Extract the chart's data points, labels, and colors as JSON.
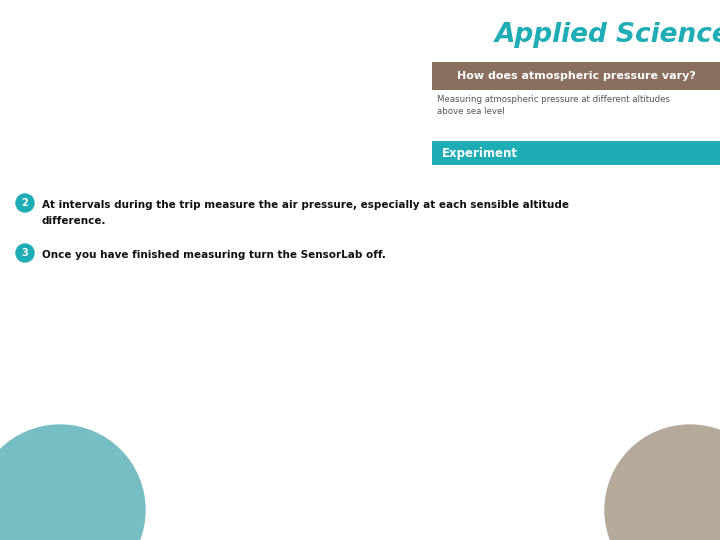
{
  "bg_color": "#ffffff",
  "title_text": "Applied Sciences",
  "title_color": "#1eacb5",
  "header_box_color": "#8b6f5e",
  "header_text": "How does atmospheric pressure vary?",
  "header_text_color": "#ffffff",
  "subtitle_text": "Measuring atmospheric pressure at different altitudes\nabove sea level",
  "subtitle_color": "#555555",
  "experiment_box_color": "#1eacb5",
  "experiment_text": "Experiment",
  "experiment_text_color": "#ffffff",
  "item2_circle_color": "#1eacb5",
  "item2_number": "2",
  "item2_text_line1": "At intervals during the trip measure the air pressure, especially at each sensible altitude",
  "item2_text_line2": "difference.",
  "item3_circle_color": "#1eacb5",
  "item3_number": "3",
  "item3_text": "Once you have finished measuring turn the SensorLab off.",
  "circle_bottom_left_color": "#76bec4",
  "circle_bottom_right_color": "#b5a99a",
  "figwidth": 7.2,
  "figheight": 5.4,
  "dpi": 100
}
